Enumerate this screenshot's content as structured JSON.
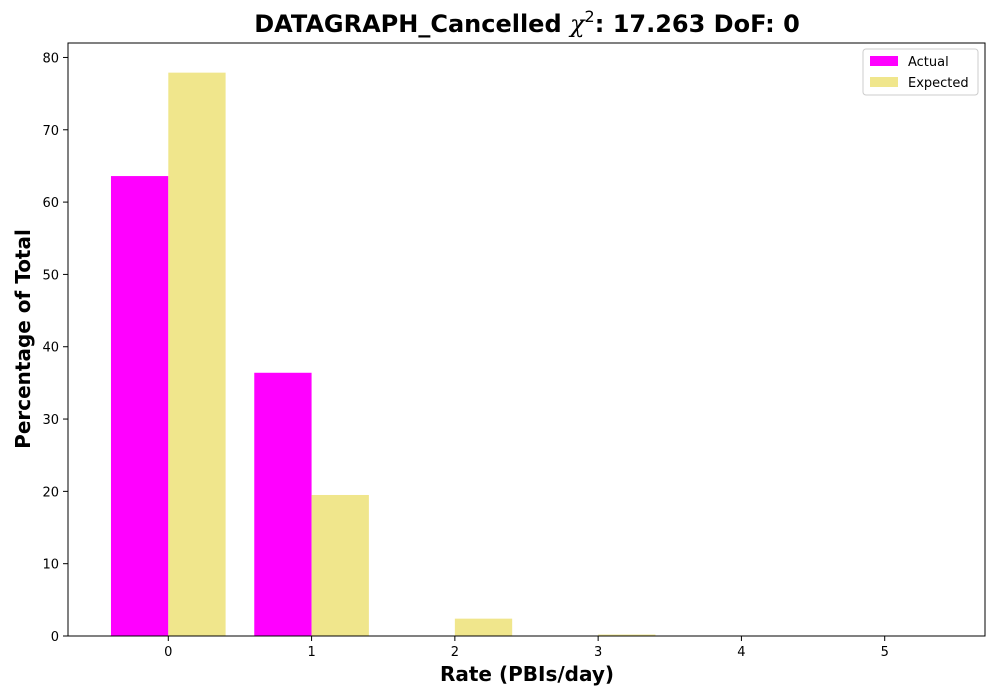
{
  "title": {
    "prefix": "DATAGRAPH_Cancelled ",
    "chi_symbol": "χ",
    "chi_power": "2",
    "suffix": ": 17.263 DoF: 0"
  },
  "chart_data": {
    "type": "bar",
    "title": "DATAGRAPH_Cancelled χ²: 17.263 DoF: 0",
    "xlabel": "Rate (PBIs/day)",
    "ylabel": "Percentage of Total",
    "categories": [
      "0",
      "1",
      "2",
      "3",
      "4",
      "5"
    ],
    "x": [
      0,
      1,
      2,
      3,
      4,
      5
    ],
    "series": [
      {
        "name": "Actual",
        "color": "#ff00ff",
        "values": [
          63.6,
          36.4,
          0,
          0,
          0,
          0
        ]
      },
      {
        "name": "Expected",
        "color": "#f0e68c",
        "values": [
          77.9,
          19.5,
          2.4,
          0.2,
          0.0,
          0.0
        ]
      }
    ],
    "xlim": [
      -0.7,
      5.7
    ],
    "ylim": [
      0,
      82
    ],
    "yticks": [
      0,
      10,
      20,
      30,
      40,
      50,
      60,
      70,
      80
    ],
    "xticks": [
      0,
      1,
      2,
      3,
      4,
      5
    ],
    "grid": false,
    "legend_position": "top-right"
  }
}
